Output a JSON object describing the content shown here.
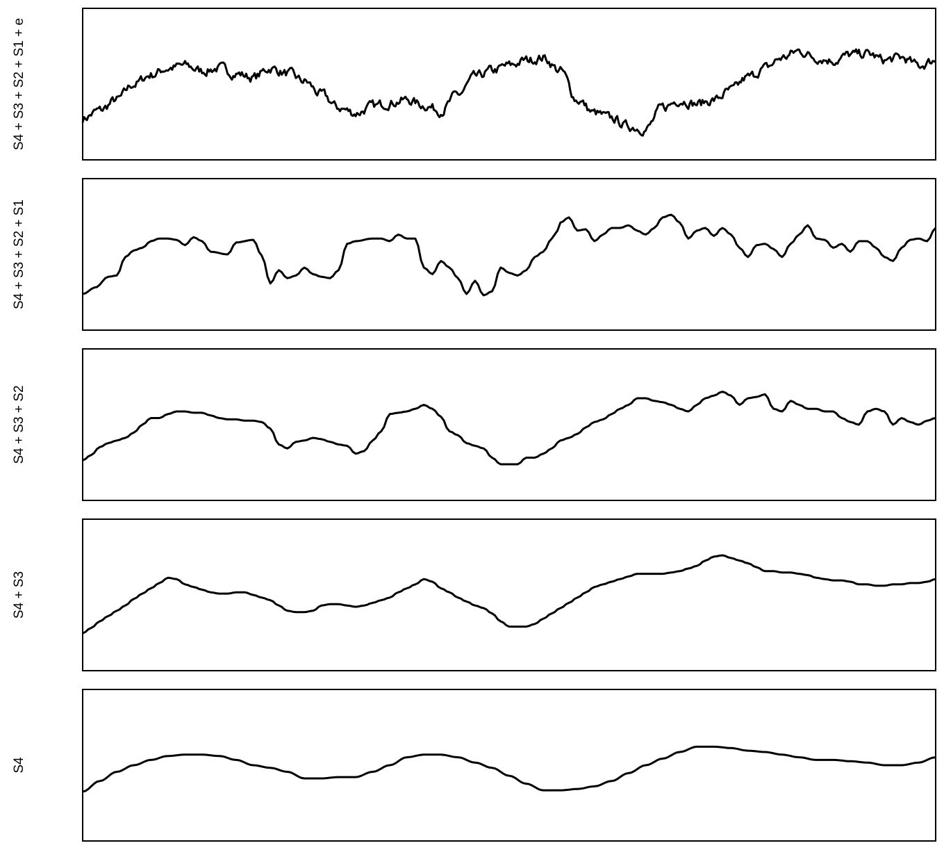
{
  "figure": {
    "line_color": "#000000",
    "frame_color": "#000000",
    "background": "#ffffff"
  },
  "chart_data": [
    {
      "type": "line",
      "ylabel": "S4 + S3 + S2 + S1 + e",
      "title": "",
      "xlabel": "",
      "xlim": [
        0,
        100
      ],
      "ylim": [
        0,
        100
      ],
      "axes_shown": false,
      "grid": false,
      "noisy": true,
      "series": [
        {
          "x": [
            0,
            2,
            4,
            6,
            8,
            10,
            12,
            14,
            16,
            18,
            20,
            22,
            24,
            26,
            28,
            30,
            32,
            34,
            36,
            38,
            40,
            42,
            44,
            46,
            48,
            50,
            52,
            54,
            56,
            58,
            60,
            62,
            64,
            66,
            68,
            70,
            72,
            74,
            76,
            78,
            80,
            82,
            84,
            86,
            88,
            90,
            92,
            94,
            96,
            98,
            100
          ],
          "values": [
            24,
            30,
            38,
            50,
            57,
            62,
            64,
            60,
            62,
            58,
            55,
            62,
            58,
            52,
            42,
            32,
            28,
            33,
            36,
            38,
            34,
            30,
            42,
            55,
            60,
            64,
            68,
            70,
            60,
            38,
            28,
            24,
            18,
            16,
            32,
            38,
            35,
            38,
            45,
            55,
            62,
            70,
            75,
            70,
            68,
            72,
            73,
            68,
            70,
            64,
            68
          ]
        }
      ]
    },
    {
      "type": "line",
      "ylabel": "S4 + S3 + S2 + S1",
      "title": "",
      "xlabel": "",
      "xlim": [
        0,
        100
      ],
      "ylim": [
        0,
        100
      ],
      "axes_shown": false,
      "grid": false,
      "series": [
        {
          "x": [
            0,
            1.5,
            3,
            4,
            5,
            6,
            7,
            8,
            9,
            10,
            11,
            12,
            13,
            14,
            15,
            17,
            18,
            20,
            21,
            22,
            23,
            24,
            25,
            26,
            27,
            28,
            29,
            30,
            31,
            32,
            34,
            35,
            36,
            37,
            38,
            39,
            40,
            41,
            42,
            43,
            44,
            45,
            46,
            47,
            48,
            49,
            50,
            51,
            52,
            53,
            54,
            55,
            55.5,
            56,
            57,
            58,
            59,
            60,
            61,
            62,
            63,
            64,
            65,
            66,
            67,
            68,
            69,
            70,
            71,
            72,
            73,
            74,
            75,
            76,
            77,
            78,
            79,
            80,
            81,
            82,
            83,
            84,
            85,
            86,
            87,
            88,
            89,
            90,
            91,
            92,
            93,
            94,
            95,
            96,
            97,
            98,
            99,
            100
          ],
          "values": [
            20,
            25,
            33,
            34,
            48,
            53,
            55,
            60,
            62,
            62,
            61,
            57,
            63,
            60,
            52,
            50,
            59,
            61,
            49,
            28,
            38,
            32,
            34,
            40,
            35,
            33,
            32,
            38,
            58,
            60,
            62,
            62,
            60,
            65,
            62,
            62,
            40,
            35,
            45,
            40,
            32,
            20,
            30,
            19,
            22,
            40,
            36,
            34,
            38,
            48,
            52,
            62,
            66,
            74,
            78,
            68,
            69,
            60,
            65,
            70,
            70,
            72,
            68,
            65,
            70,
            78,
            80,
            74,
            62,
            68,
            70,
            64,
            70,
            65,
            55,
            48,
            57,
            58,
            54,
            48,
            58,
            65,
            72,
            62,
            61,
            55,
            58,
            52,
            60,
            60,
            55,
            48,
            45,
            55,
            61,
            62,
            60,
            70
          ]
        }
      ]
    },
    {
      "type": "line",
      "ylabel": "S4 + S3 + S2",
      "title": "",
      "xlabel": "",
      "xlim": [
        0,
        100
      ],
      "ylim": [
        0,
        100
      ],
      "axes_shown": false,
      "grid": false,
      "series": [
        {
          "x": [
            0,
            1,
            2,
            3,
            4,
            5,
            6,
            7,
            8,
            9,
            10,
            11,
            12,
            13,
            14,
            15,
            16,
            17,
            18,
            19,
            20,
            21,
            22,
            23,
            24,
            25,
            26,
            27,
            28,
            29,
            30,
            31,
            32,
            33,
            34,
            35,
            36,
            37,
            38,
            39,
            40,
            41,
            42,
            43,
            44,
            45,
            46,
            47,
            48,
            49,
            50,
            51,
            52,
            53,
            54,
            55,
            56,
            57,
            58,
            59,
            60,
            61,
            62,
            63,
            64,
            65,
            66,
            67,
            68,
            69,
            70,
            71,
            72,
            73,
            74,
            75,
            76,
            77,
            78,
            79,
            80,
            81,
            82,
            83,
            84,
            85,
            86,
            87,
            88,
            89,
            90,
            91,
            92,
            93,
            94,
            95,
            96,
            97,
            98,
            99,
            100
          ],
          "values": [
            23,
            27,
            33,
            36,
            38,
            40,
            44,
            50,
            55,
            55,
            58,
            60,
            60,
            59,
            59,
            57,
            55,
            54,
            54,
            53,
            53,
            52,
            47,
            35,
            32,
            37,
            38,
            40,
            39,
            37,
            35,
            34,
            28,
            30,
            38,
            45,
            58,
            59,
            60,
            62,
            65,
            62,
            56,
            45,
            42,
            36,
            34,
            32,
            25,
            20,
            20,
            20,
            25,
            25,
            28,
            32,
            38,
            40,
            43,
            48,
            52,
            54,
            58,
            62,
            65,
            70,
            70,
            68,
            67,
            65,
            62,
            60,
            65,
            70,
            72,
            75,
            72,
            65,
            70,
            71,
            73,
            62,
            60,
            68,
            65,
            62,
            62,
            60,
            60,
            55,
            52,
            50,
            60,
            62,
            60,
            50,
            55,
            52,
            50,
            53,
            55
          ]
        }
      ]
    },
    {
      "type": "line",
      "ylabel": "S4 + S3",
      "title": "",
      "xlabel": "",
      "xlim": [
        0,
        100
      ],
      "ylim": [
        0,
        100
      ],
      "axes_shown": false,
      "grid": false,
      "series": [
        {
          "x": [
            0,
            1,
            2,
            3,
            4,
            5,
            6,
            7,
            8,
            9,
            10,
            11,
            12,
            13,
            14,
            15,
            16,
            17,
            18,
            19,
            20,
            21,
            22,
            23,
            24,
            25,
            26,
            27,
            28,
            29,
            30,
            31,
            32,
            33,
            34,
            35,
            36,
            37,
            38,
            39,
            40,
            41,
            42,
            43,
            44,
            45,
            46,
            47,
            48,
            49,
            50,
            51,
            52,
            53,
            54,
            55,
            56,
            57,
            58,
            59,
            60,
            61,
            62,
            63,
            64,
            65,
            66,
            67,
            68,
            69,
            70,
            71,
            72,
            73,
            74,
            75,
            76,
            77,
            78,
            79,
            80,
            81,
            82,
            83,
            84,
            85,
            86,
            87,
            88,
            89,
            90,
            91,
            92,
            93,
            94,
            95,
            96,
            97,
            98,
            99,
            100
          ],
          "values": [
            21,
            25,
            30,
            34,
            38,
            42,
            47,
            51,
            55,
            59,
            63,
            62,
            58,
            56,
            54,
            52,
            51,
            51,
            52,
            52,
            50,
            48,
            46,
            42,
            38,
            37,
            37,
            38,
            42,
            43,
            43,
            42,
            41,
            42,
            44,
            46,
            48,
            52,
            55,
            58,
            62,
            60,
            55,
            52,
            48,
            45,
            42,
            40,
            36,
            30,
            26,
            26,
            26,
            28,
            32,
            36,
            40,
            44,
            48,
            52,
            56,
            58,
            60,
            62,
            64,
            66,
            66,
            66,
            66,
            67,
            68,
            70,
            72,
            76,
            79,
            80,
            78,
            76,
            74,
            71,
            68,
            68,
            67,
            67,
            66,
            65,
            63,
            62,
            61,
            61,
            60,
            58,
            58,
            57,
            57,
            58,
            58,
            59,
            59,
            60,
            62
          ]
        }
      ]
    },
    {
      "type": "line",
      "ylabel": "S4",
      "title": "",
      "xlabel": "",
      "xlim": [
        0,
        100
      ],
      "ylim": [
        0,
        100
      ],
      "axes_shown": false,
      "grid": false,
      "series": [
        {
          "x": [
            0,
            2,
            4,
            6,
            8,
            10,
            12,
            14,
            16,
            18,
            20,
            22,
            24,
            26,
            28,
            30,
            32,
            34,
            36,
            38,
            40,
            42,
            44,
            46,
            48,
            50,
            52,
            54,
            56,
            58,
            60,
            62,
            64,
            66,
            68,
            70,
            72,
            74,
            76,
            78,
            80,
            82,
            84,
            86,
            88,
            90,
            92,
            94,
            96,
            98,
            100
          ],
          "values": [
            30,
            38,
            45,
            50,
            54,
            57,
            58,
            58,
            57,
            54,
            50,
            48,
            45,
            40,
            40,
            41,
            41,
            45,
            50,
            56,
            58,
            58,
            56,
            52,
            48,
            42,
            36,
            31,
            31,
            32,
            34,
            38,
            44,
            50,
            55,
            60,
            64,
            64,
            63,
            61,
            60,
            58,
            56,
            54,
            54,
            53,
            52,
            50,
            50,
            52,
            56
          ]
        }
      ]
    }
  ]
}
